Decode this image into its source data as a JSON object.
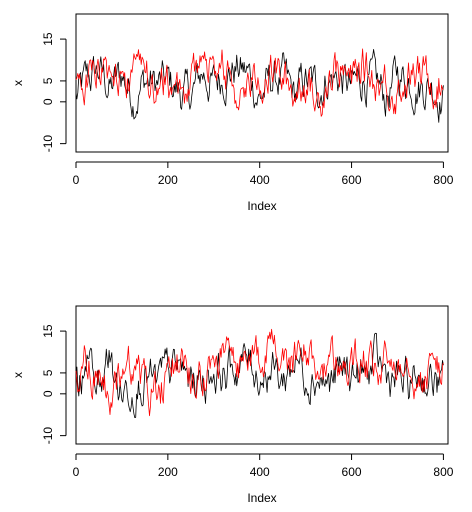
{
  "chart_data": [
    {
      "type": "line",
      "xlabel": "Index",
      "ylabel": "x",
      "xlim": [
        0,
        810
      ],
      "ylim": [
        -12,
        21
      ],
      "xticks": [
        0,
        200,
        400,
        600,
        800
      ],
      "yticks": [
        -10,
        0,
        5,
        15
      ],
      "grid": false,
      "series": [
        {
          "color": "#000000",
          "sample_every": 25,
          "values": [
            1.0,
            5.0,
            7.5,
            3.0,
            6.5,
            1.5,
            5.0,
            4.0,
            4.5,
            2.5,
            1.0,
            7.0,
            4.0,
            7.0,
            8.0,
            6.5,
            1.0,
            5.0,
            5.5,
            1.0,
            5.0,
            3.0,
            6.0,
            5.5,
            3.0,
            6.0,
            4.0,
            1.0,
            6.5,
            5.5,
            4.0,
            4.5,
            1.0
          ]
        },
        {
          "color": "#ff0000",
          "sample_every": 25,
          "values": [
            4.0,
            8.0,
            11.0,
            5.0,
            6.0,
            6.0,
            3.0,
            5.0,
            4.5,
            2.0,
            4.0,
            10.0,
            7.0,
            8.5,
            3.0,
            4.0,
            6.5,
            7.5,
            5.0,
            2.0,
            6.5,
            -1.0,
            7.0,
            8.5,
            4.0,
            8.5,
            5.0,
            4.5,
            3.5,
            6.5,
            5.5,
            6.5,
            4.5
          ]
        }
      ]
    },
    {
      "type": "line",
      "xlabel": "Index",
      "ylabel": "x",
      "xlim": [
        0,
        810
      ],
      "ylim": [
        -12,
        21
      ],
      "xticks": [
        0,
        200,
        400,
        600,
        800
      ],
      "yticks": [
        -10,
        0,
        5,
        15
      ],
      "grid": false,
      "series": [
        {
          "color": "#000000",
          "sample_every": 25,
          "values": [
            3.0,
            6.0,
            3.0,
            7.5,
            0.5,
            3.0,
            5.0,
            1.0,
            5.0,
            6.0,
            3.0,
            3.5,
            6.0,
            5.0,
            6.5,
            8.0,
            5.0,
            6.5,
            3.0,
            8.5,
            6.0,
            5.0,
            2.0,
            4.5,
            5.5,
            3.5,
            7.0,
            4.5,
            3.0,
            1.5,
            5.0,
            3.0,
            1.5
          ]
        },
        {
          "color": "#ff0000",
          "sample_every": 25,
          "values": [
            5.0,
            9.0,
            3.0,
            1.0,
            4.0,
            9.0,
            2.0,
            0.0,
            4.5,
            7.0,
            6.0,
            5.5,
            8.0,
            8.5,
            7.5,
            6.5,
            8.0,
            11.0,
            4.5,
            7.0,
            9.5,
            4.0,
            8.5,
            6.5,
            6.0,
            9.0,
            3.0,
            7.0,
            9.0,
            11.0,
            3.0,
            6.5,
            8.0
          ]
        }
      ]
    }
  ]
}
